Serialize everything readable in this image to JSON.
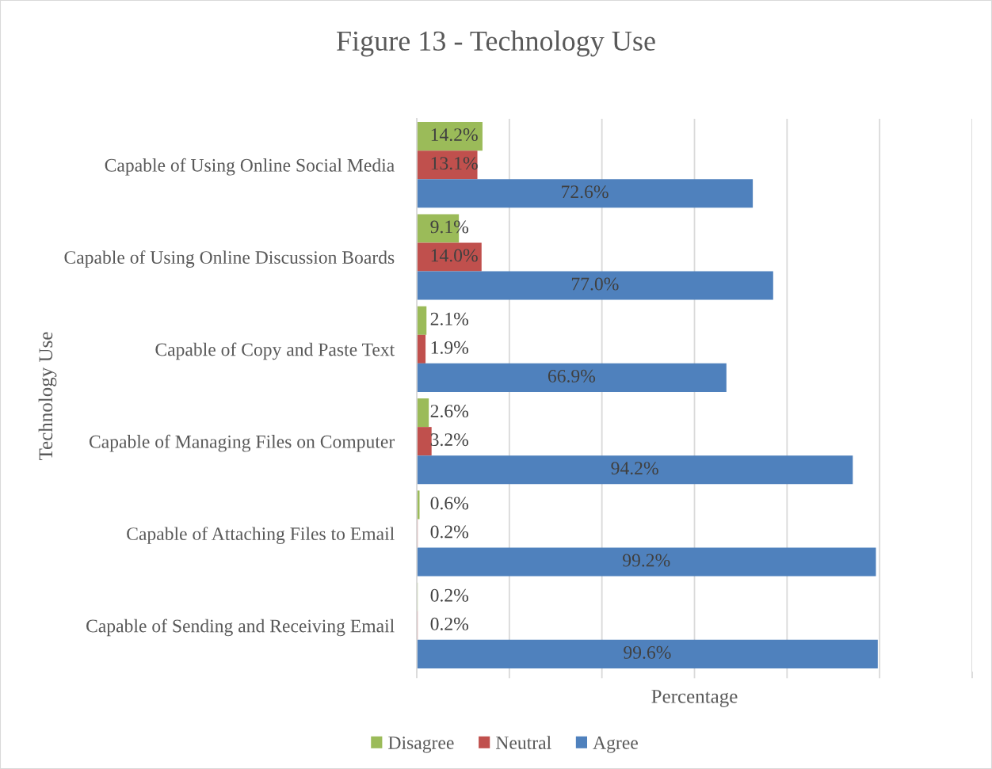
{
  "chart_data": {
    "type": "bar",
    "orientation": "horizontal",
    "title": "Figure 13 - Technology Use",
    "xlabel": "Percentage",
    "ylabel": "Technology Use",
    "categories": [
      "Capable of Using Online Social Media",
      "Capable of Using Online Discussion Boards",
      "Capable of Copy and Paste Text",
      "Capable of Managing Files on Computer",
      "Capable of Attaching Files to Email",
      "Capable of Sending and Receiving Email"
    ],
    "series": [
      {
        "name": "Disagree",
        "color": "#9bbb59",
        "values": [
          14.2,
          9.1,
          2.1,
          2.6,
          0.6,
          0.2
        ],
        "value_labels": [
          "14.2%",
          "9.1%",
          "2.1%",
          "2.6%",
          "0.6%",
          "0.2%"
        ]
      },
      {
        "name": "Neutral",
        "color": "#c0504d",
        "values": [
          13.1,
          14.0,
          1.9,
          3.2,
          0.2,
          0.2
        ],
        "value_labels": [
          "13.1%",
          "14.0%",
          "1.9%",
          "3.2%",
          "0.2%",
          "0.2%"
        ]
      },
      {
        "name": "Agree",
        "color": "#4f81bd",
        "values": [
          72.6,
          77.0,
          66.9,
          94.2,
          99.2,
          99.6
        ],
        "value_labels": [
          "72.6%",
          "77.0%",
          "66.9%",
          "94.2%",
          "99.2%",
          "99.6%"
        ]
      }
    ],
    "xlim": [
      0,
      120
    ],
    "xticks": [
      {
        "value": 0,
        "label": null
      },
      {
        "value": 20,
        "label": null
      },
      {
        "value": 40,
        "label": null
      },
      {
        "value": 60,
        "label": null
      },
      {
        "value": 80,
        "label": null
      },
      {
        "value": 100,
        "label": null
      },
      {
        "value": 120,
        "label": null
      }
    ],
    "grid": "x",
    "legend": "bottom",
    "tick_labels": "y"
  }
}
